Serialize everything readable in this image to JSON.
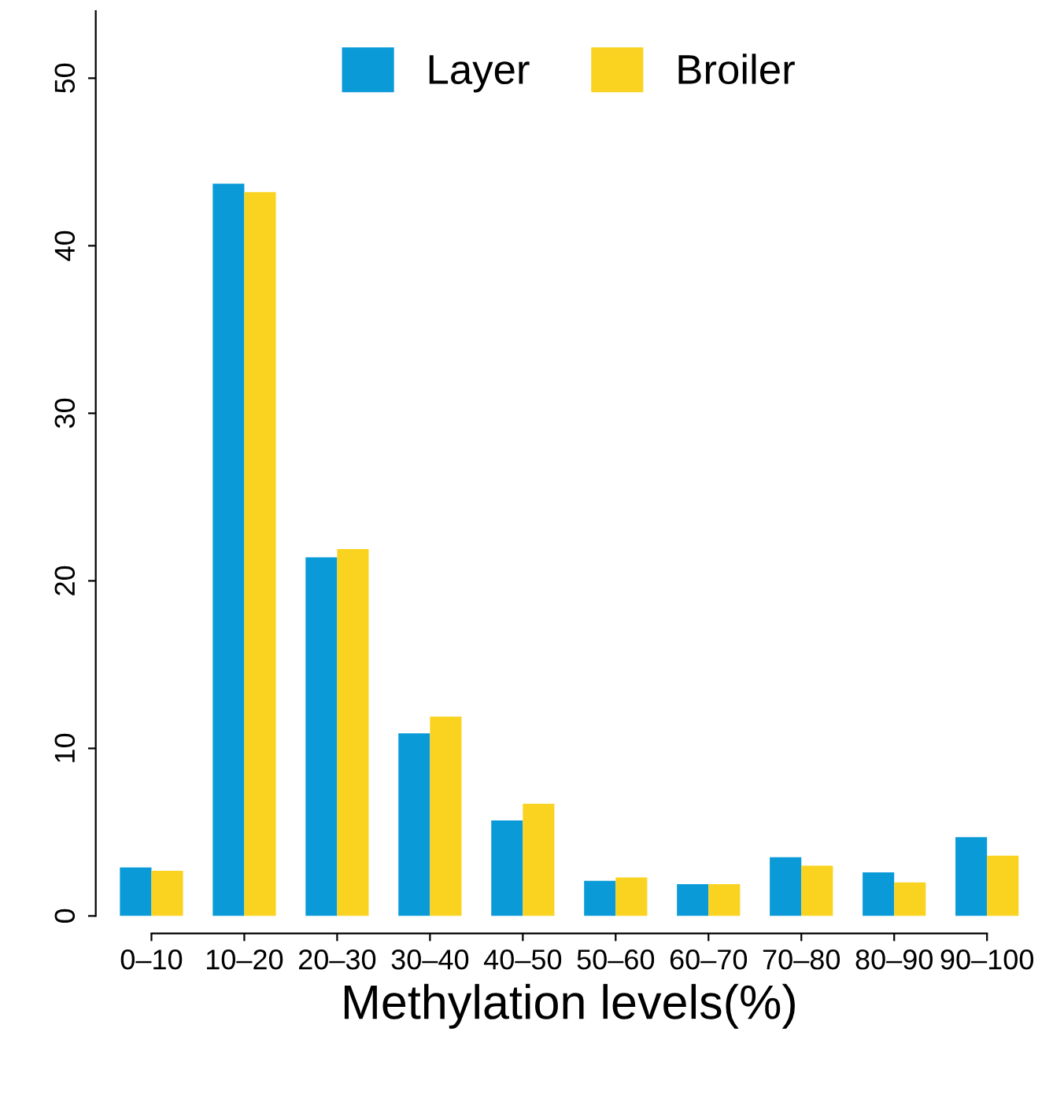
{
  "chart_data": {
    "type": "bar",
    "xlabel": "Methylation levels(%)",
    "categories": [
      "0–10",
      "10–20",
      "20–30",
      "30–40",
      "40–50",
      "50–60",
      "60–70",
      "70–80",
      "80–90",
      "90–100"
    ],
    "series": [
      {
        "name": "Layer",
        "color": "#0a9ad7",
        "values": [
          2.9,
          43.7,
          21.4,
          10.9,
          5.7,
          2.1,
          1.9,
          3.5,
          2.6,
          4.7
        ]
      },
      {
        "name": "Broiler",
        "color": "#f9d320",
        "values": [
          2.7,
          43.2,
          21.9,
          11.9,
          6.7,
          2.3,
          1.9,
          3.0,
          2.0,
          3.6
        ]
      }
    ],
    "ylim": [
      0,
      54
    ],
    "yticks": [
      0,
      10,
      20,
      30,
      40,
      50
    ],
    "grid": false,
    "legend": "top"
  }
}
